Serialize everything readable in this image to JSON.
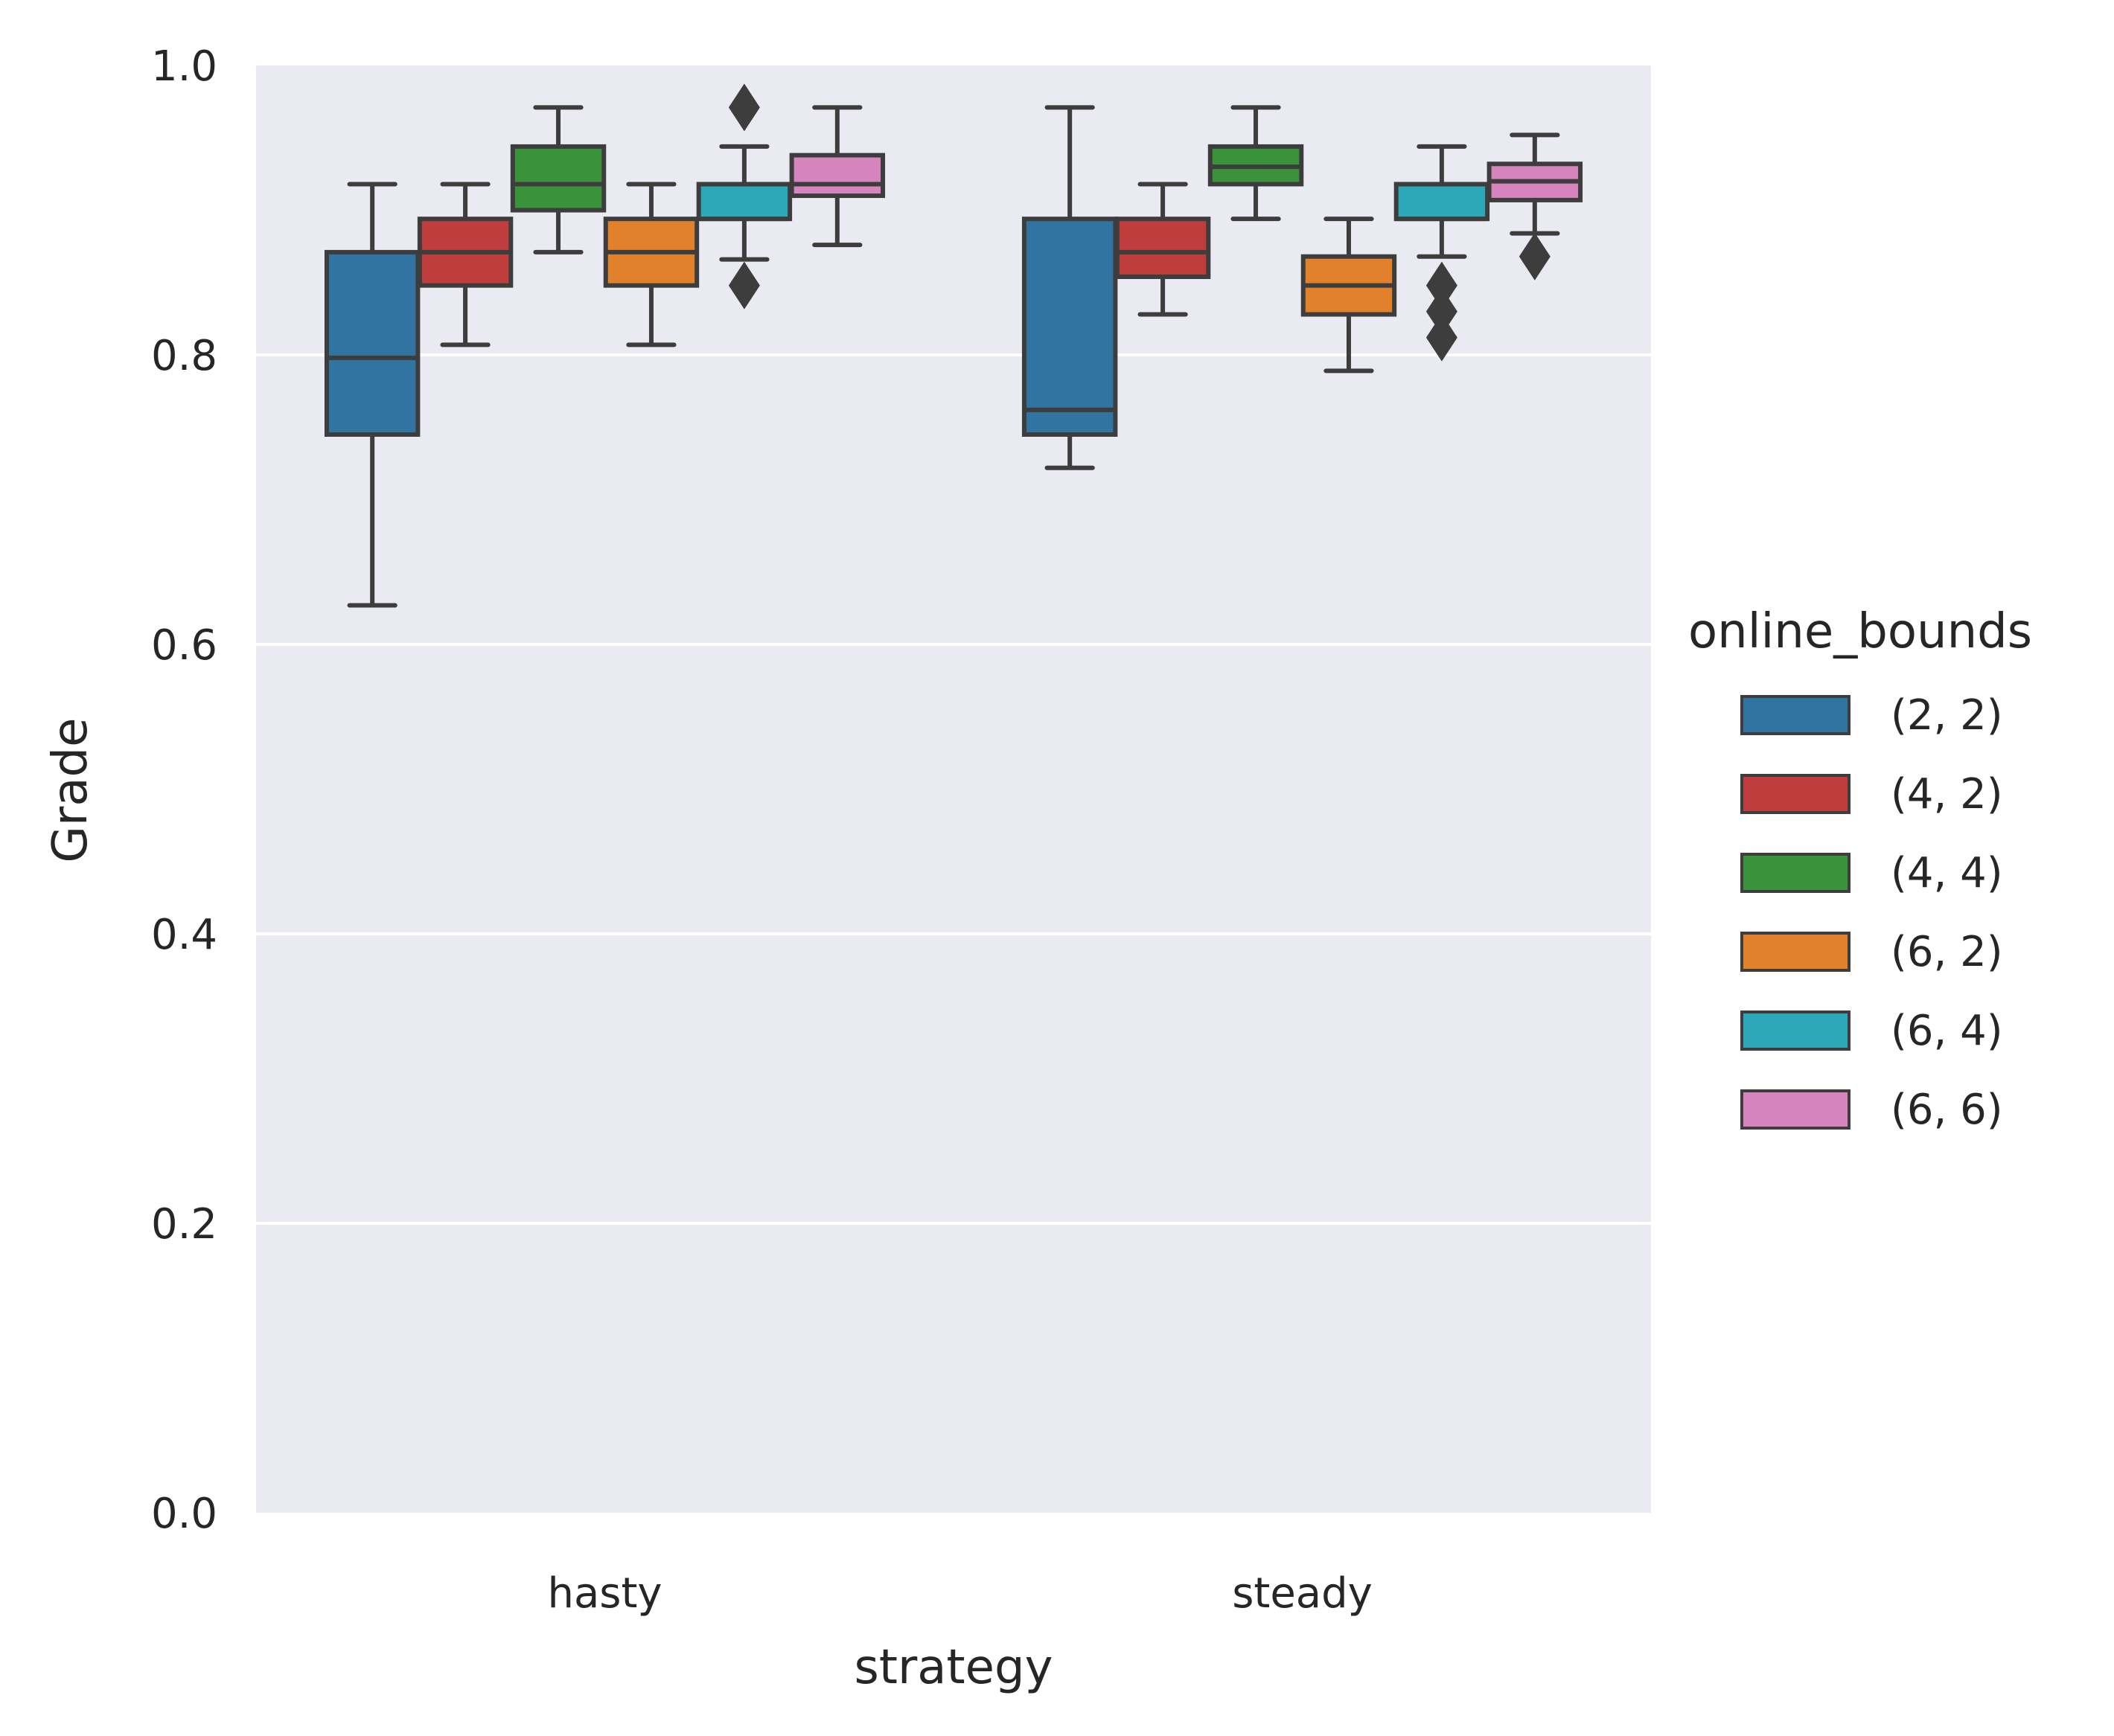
{
  "chart_data": {
    "type": "box",
    "xlabel": "strategy",
    "ylabel": "Grade",
    "categories": [
      "hasty",
      "steady"
    ],
    "ylim": [
      0.0,
      1.0
    ],
    "yticks": [
      "0.0",
      "0.2",
      "0.4",
      "0.6",
      "0.8",
      "1.0"
    ],
    "grid": true,
    "background": "#eaeaf2",
    "legend": {
      "title": "online_bounds",
      "placement": "right"
    },
    "series": [
      {
        "name": "(2, 2)",
        "color": "#3274a1",
        "boxes": [
          {
            "whislo": 0.627,
            "q1": 0.745,
            "med": 0.798,
            "q3": 0.871,
            "whishi": 0.918,
            "fliers": []
          },
          {
            "whislo": 0.722,
            "q1": 0.745,
            "med": 0.762,
            "q3": 0.894,
            "whishi": 0.971,
            "fliers": []
          }
        ]
      },
      {
        "name": "(4, 2)",
        "color": "#c03d3e",
        "boxes": [
          {
            "whislo": 0.807,
            "q1": 0.848,
            "med": 0.871,
            "q3": 0.894,
            "whishi": 0.918,
            "fliers": []
          },
          {
            "whislo": 0.828,
            "q1": 0.854,
            "med": 0.871,
            "q3": 0.894,
            "whishi": 0.918,
            "fliers": []
          }
        ]
      },
      {
        "name": "(4, 4)",
        "color": "#3a923a",
        "boxes": [
          {
            "whislo": 0.871,
            "q1": 0.9,
            "med": 0.918,
            "q3": 0.944,
            "whishi": 0.971,
            "fliers": []
          },
          {
            "whislo": 0.894,
            "q1": 0.918,
            "med": 0.93,
            "q3": 0.944,
            "whishi": 0.971,
            "fliers": []
          }
        ]
      },
      {
        "name": "(6, 2)",
        "color": "#e1812c",
        "boxes": [
          {
            "whislo": 0.807,
            "q1": 0.848,
            "med": 0.871,
            "q3": 0.894,
            "whishi": 0.918,
            "fliers": []
          },
          {
            "whislo": 0.789,
            "q1": 0.828,
            "med": 0.848,
            "q3": 0.868,
            "whishi": 0.894,
            "fliers": []
          }
        ]
      },
      {
        "name": "(6, 4)",
        "color": "#2da8b8",
        "boxes": [
          {
            "whislo": 0.866,
            "q1": 0.894,
            "med": 0.894,
            "q3": 0.918,
            "whishi": 0.944,
            "fliers": [
              0.971,
              0.848
            ]
          },
          {
            "whislo": 0.868,
            "q1": 0.894,
            "med": 0.894,
            "q3": 0.918,
            "whishi": 0.944,
            "fliers": [
              0.848,
              0.83,
              0.812
            ]
          }
        ]
      },
      {
        "name": "(6, 6)",
        "color": "#d684bd",
        "boxes": [
          {
            "whislo": 0.876,
            "q1": 0.91,
            "med": 0.918,
            "q3": 0.938,
            "whishi": 0.971,
            "fliers": []
          },
          {
            "whislo": 0.884,
            "q1": 0.907,
            "med": 0.92,
            "q3": 0.932,
            "whishi": 0.952,
            "fliers": [
              0.868
            ]
          }
        ]
      }
    ]
  }
}
